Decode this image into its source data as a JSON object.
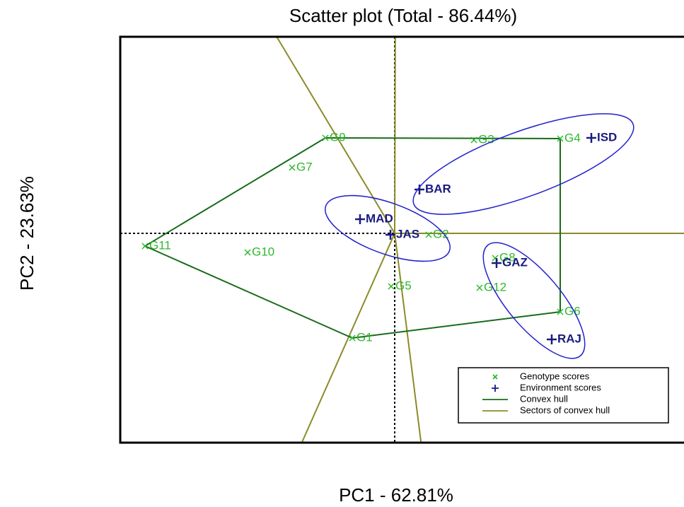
{
  "chart_data": {
    "type": "scatter",
    "title": "Scatter plot (Total - 86.44%)",
    "x_label": "PC1 - 62.81%",
    "y_label": "PC2 - 23.63%",
    "xlim": [
      -3.88,
      4.09
    ],
    "ylim": [
      -2.96,
      2.78
    ],
    "series": [
      {
        "name": "Genotype scores",
        "color": "#2db82d",
        "marker": "x",
        "labels": [
          "G9",
          "G3",
          "G4",
          "G7",
          "G11",
          "G10",
          "G2",
          "G8",
          "G5",
          "G12",
          "G6",
          "G1"
        ],
        "x": [
          -0.98,
          1.12,
          2.34,
          -1.45,
          -3.53,
          -2.08,
          0.48,
          1.42,
          -0.05,
          1.2,
          2.34,
          -0.6
        ],
        "values": [
          1.35,
          1.32,
          1.34,
          0.93,
          -0.18,
          -0.27,
          -0.02,
          -0.35,
          -0.75,
          -0.77,
          -1.11,
          -1.48
        ]
      },
      {
        "name": "Environment scores",
        "color": "#1a1a80",
        "marker": "+",
        "labels": [
          "ISD",
          "BAR",
          "MAD",
          "JAS",
          "GAZ",
          "RAJ"
        ],
        "x": [
          2.78,
          0.35,
          -0.49,
          -0.06,
          1.44,
          2.22
        ],
        "values": [
          1.35,
          0.62,
          0.2,
          -0.02,
          -0.42,
          -1.5
        ]
      }
    ],
    "hull": [
      4,
      0,
      2,
      10,
      11
    ],
    "lines": [
      {
        "name": "Convex hull",
        "color": "#1a6b1a"
      },
      {
        "name": "Sectors of convex hull",
        "color": "#8b8b2a"
      }
    ]
  }
}
